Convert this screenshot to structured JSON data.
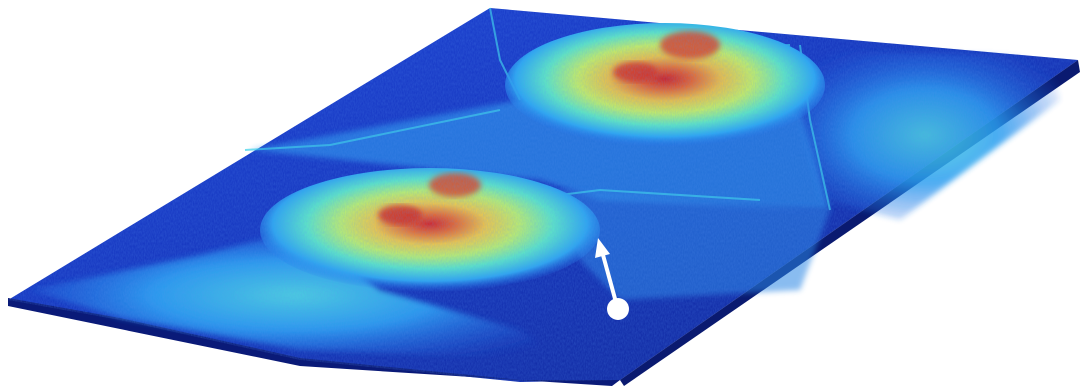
{
  "figure": {
    "description_icon": "3d-surface-plot",
    "colormap": [
      "#0b1e8a",
      "#1436c8",
      "#1e6ee8",
      "#2ab4f0",
      "#3ee0d8",
      "#8ef08a",
      "#e8f05a",
      "#f0b030",
      "#e8502a",
      "#c81e1e"
    ],
    "background": "#ffffff",
    "marker_color": "#ffffff",
    "regions": [
      {
        "name": "upper-peak-region",
        "peak_level": 1.0
      },
      {
        "name": "lower-peak-region",
        "peak_level": 0.95
      },
      {
        "name": "upper-right-plateau",
        "peak_level": 0.35
      },
      {
        "name": "lower-left-plateau",
        "peak_level": 0.3
      }
    ],
    "annotation": {
      "type": "arrow-with-dot",
      "icon": "pointer-arrow-icon"
    }
  }
}
